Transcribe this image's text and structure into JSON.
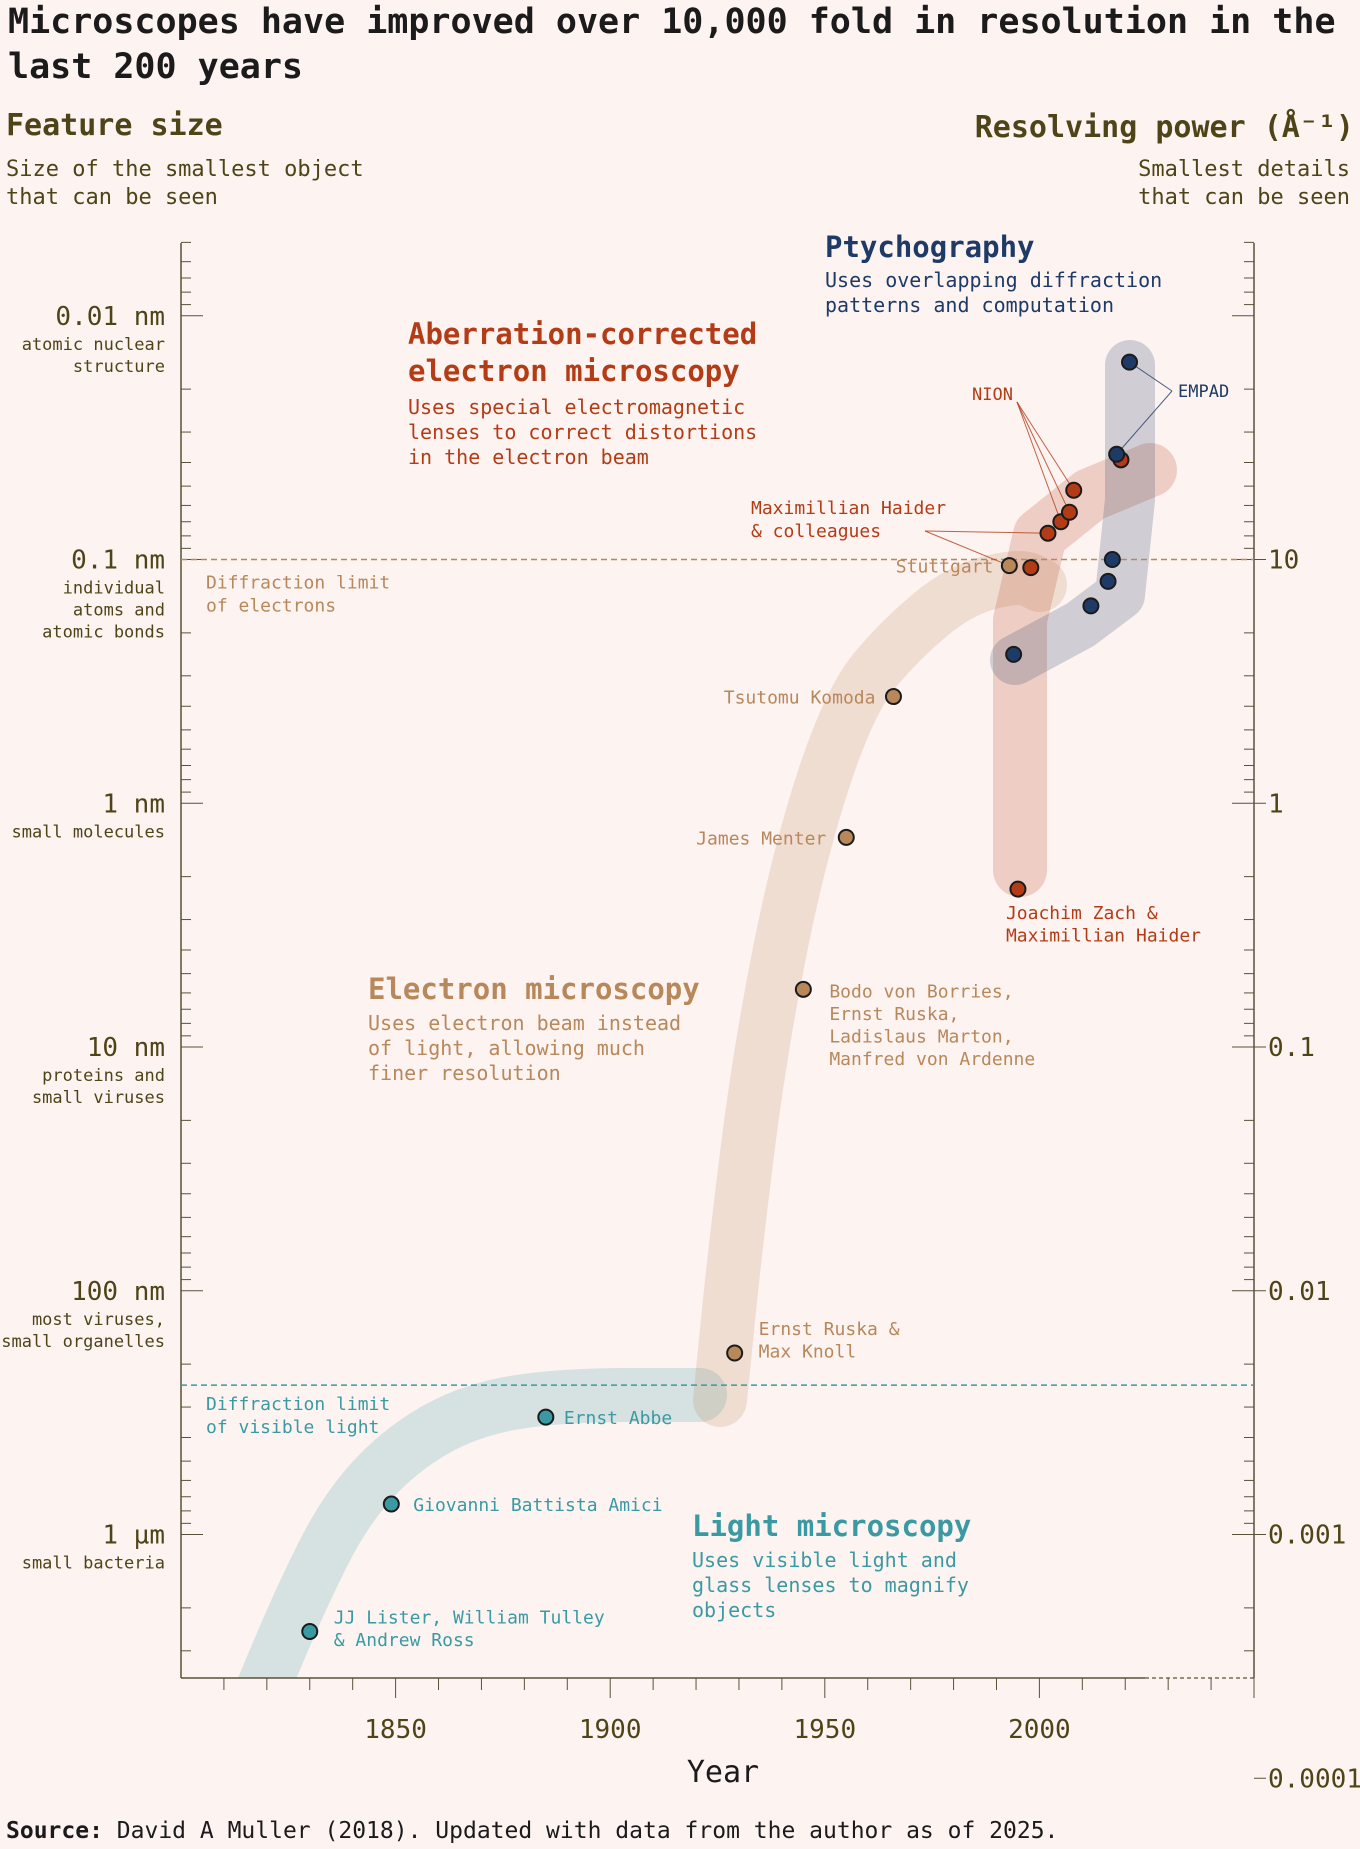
{
  "title": "Microscopes have improved over 10,000 fold in resolution in the last 200 years",
  "left_header": {
    "title": "Feature size",
    "subtitle": "Size of the smallest object\nthat can be seen"
  },
  "right_header": {
    "title": "Resolving power (Å⁻¹)",
    "subtitle": "Smallest details\nthat can be seen"
  },
  "source": {
    "label": "Source:",
    "text": "David A Muller (2018). Updated with data from the author as of 2025."
  },
  "colors": {
    "light": "#3a9aa3",
    "electron": "#b8875a",
    "aberration": "#b33c16",
    "ptycho": "#1e3a66",
    "axis": "#4f4418"
  },
  "chart_data": {
    "type": "scatter",
    "xlabel": "Year",
    "xlim": [
      1800,
      2050
    ],
    "x_ticks": [
      1850,
      1900,
      1950,
      2000
    ],
    "y_scale": "log",
    "ylim_nm": [
      3.6,
      0.0025
    ],
    "left_axis_ticks": [
      {
        "nm": 0.01,
        "label": "0.01 nm",
        "desc": "atomic nuclear\nstructure"
      },
      {
        "nm": 0.1,
        "label": "0.1 nm",
        "desc": "individual\natoms and\natomic bonds"
      },
      {
        "nm": 1,
        "label": "1 nm",
        "desc": "small molecules"
      },
      {
        "nm": 10,
        "label": "10 nm",
        "desc": "proteins and\nsmall viruses"
      },
      {
        "nm": 100,
        "label": "100 nm",
        "desc": "most viruses,\nsmall organelles"
      },
      {
        "nm": 1000,
        "label": "1 µm",
        "desc": "small bacteria"
      }
    ],
    "right_axis_ticks": [
      {
        "nm": 0.1,
        "label": "10"
      },
      {
        "nm": 1,
        "label": "1"
      },
      {
        "nm": 10,
        "label": "0.1"
      },
      {
        "nm": 100,
        "label": "0.01"
      },
      {
        "nm": 1000,
        "label": "0.001"
      },
      {
        "nm": 10000,
        "label": "0.0001"
      }
    ],
    "limits": [
      {
        "name": "Diffraction limit\nof electrons",
        "nm": 0.1,
        "color": "electron"
      },
      {
        "name": "Diffraction limit\nof visible light",
        "nm": 200,
        "color": "light"
      }
    ],
    "categories": [
      {
        "key": "light",
        "title": "Light microscopy",
        "desc": "Uses visible light and\nglass lenses to magnify\nobjects"
      },
      {
        "key": "electron",
        "title": "Electron microscopy",
        "desc": "Uses electron beam instead\nof light, allowing much\nfiner resolution"
      },
      {
        "key": "aberration",
        "title": "Aberration-corrected\nelectron microscopy",
        "desc": "Uses special electromagnetic\nlenses to correct distortions\nin the electron beam"
      },
      {
        "key": "ptycho",
        "title": "Ptychography",
        "desc": "Uses overlapping diffraction\npatterns and computation"
      }
    ],
    "series": [
      {
        "name": "Light microscopy",
        "key": "light",
        "points": [
          {
            "x": 1830,
            "y": 2500,
            "label": "JJ Lister, William Tulley\n& Andrew Ross"
          },
          {
            "x": 1849,
            "y": 750,
            "label": "Giovanni Battista Amici"
          },
          {
            "x": 1885,
            "y": 330,
            "label": "Ernst Abbe"
          }
        ]
      },
      {
        "name": "Electron microscopy",
        "key": "electron",
        "points": [
          {
            "x": 1929,
            "y": 180,
            "label": "Ernst Ruska &\nMax Knoll"
          },
          {
            "x": 1945,
            "y": 5.8,
            "label": "Bodo von Borries,\nErnst Ruska,\nLadislaus Marton,\nManfred von Ardenne"
          },
          {
            "x": 1955,
            "y": 1.38,
            "label": "James Menter"
          },
          {
            "x": 1966,
            "y": 0.365,
            "label": "Tsutomu Komoda"
          },
          {
            "x": 1993,
            "y": 0.106,
            "label": "Stuttgart"
          }
        ]
      },
      {
        "name": "Aberration-corrected electron microscopy",
        "key": "aberration",
        "points": [
          {
            "x": 1995,
            "y": 2.25,
            "label": "Joachim Zach &\nMaximillian Haider"
          },
          {
            "x": 1998,
            "y": 0.108,
            "label": ""
          },
          {
            "x": 2002,
            "y": 0.078,
            "label": ""
          },
          {
            "x": 2005,
            "y": 0.07,
            "label": ""
          },
          {
            "x": 2007,
            "y": 0.064,
            "label": ""
          },
          {
            "x": 2008,
            "y": 0.052,
            "label": ""
          },
          {
            "x": 2019,
            "y": 0.039,
            "label": ""
          }
        ]
      },
      {
        "name": "Ptychography",
        "key": "ptycho",
        "points": [
          {
            "x": 1994,
            "y": 0.245,
            "label": ""
          },
          {
            "x": 2012,
            "y": 0.155,
            "label": ""
          },
          {
            "x": 2016,
            "y": 0.123,
            "label": ""
          },
          {
            "x": 2017,
            "y": 0.1,
            "label": ""
          },
          {
            "x": 2018,
            "y": 0.037,
            "label": ""
          },
          {
            "x": 2021,
            "y": 0.0155,
            "label": ""
          }
        ]
      }
    ],
    "annotations": [
      {
        "text": "NION",
        "key": "aberration"
      },
      {
        "text": "Maximillian Haider\n& colleagues",
        "key": "aberration"
      },
      {
        "text": "EMPAD",
        "key": "ptycho"
      }
    ]
  }
}
